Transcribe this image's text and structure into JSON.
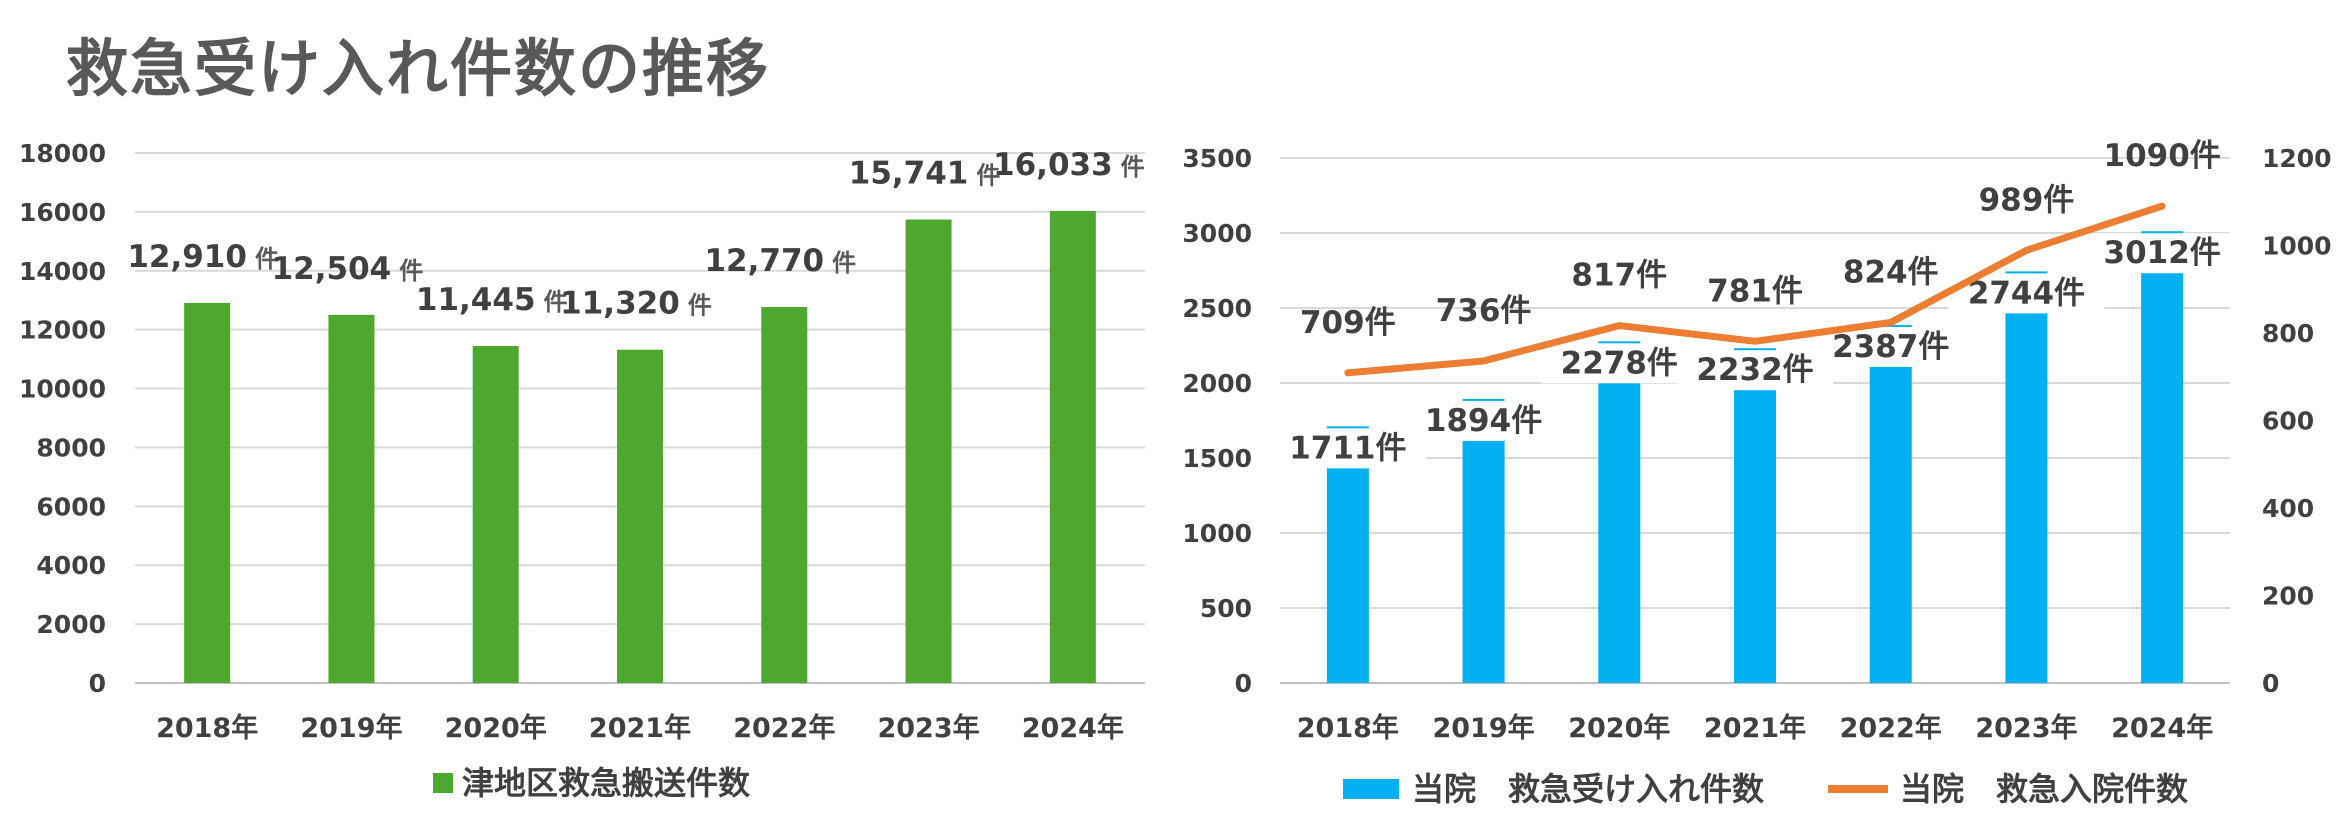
{
  "title": "救急受け入れ件数の推移",
  "chart_data": [
    {
      "type": "bar",
      "categories": [
        "2018年",
        "2019年",
        "2020年",
        "2021年",
        "2022年",
        "2023年",
        "2024年"
      ],
      "series": [
        {
          "name": "津地区救急搬送件数",
          "color": "#4ea72e",
          "values": [
            12910,
            12504,
            11445,
            11320,
            12770,
            15741,
            16033
          ],
          "labels": [
            "12,910",
            "12,504",
            "11,445",
            "11,320",
            "12,770",
            "15,741",
            "16,033"
          ],
          "label_unit": "件"
        }
      ],
      "ylim": [
        0,
        18000
      ],
      "yticks": [
        "0",
        "2000",
        "4000",
        "6000",
        "8000",
        "10000",
        "12000",
        "14000",
        "16000",
        "18000"
      ],
      "grid": true,
      "legend": "bottom"
    },
    {
      "type": "bar",
      "categories": [
        "2018年",
        "2019年",
        "2020年",
        "2021年",
        "2022年",
        "2023年",
        "2024年"
      ],
      "series": [
        {
          "name": "当院　救急受け入れ件数",
          "type": "bar",
          "color": "#00b0f0",
          "axis": "left",
          "values": [
            1711,
            1894,
            2278,
            2232,
            2387,
            2744,
            3012
          ],
          "labels": [
            "1711件",
            "1894件",
            "2278件",
            "2232件",
            "2387件",
            "2744件",
            "3012件"
          ]
        },
        {
          "name": "当院　救急入院件数",
          "type": "line",
          "color": "#ed7d31",
          "axis": "right",
          "values": [
            709,
            736,
            817,
            781,
            824,
            989,
            1090
          ],
          "labels": [
            "709件",
            "736件",
            "817件",
            "781件",
            "824件",
            "989件",
            "1090件"
          ]
        }
      ],
      "ylim": [
        0,
        3500
      ],
      "yticks": [
        "0",
        "500",
        "1000",
        "1500",
        "2000",
        "2500",
        "3000",
        "3500"
      ],
      "y2lim": [
        0,
        1200
      ],
      "y2ticks": [
        "0",
        "200",
        "400",
        "600",
        "800",
        "1000",
        "1200"
      ],
      "grid": true,
      "legend": "bottom"
    }
  ]
}
